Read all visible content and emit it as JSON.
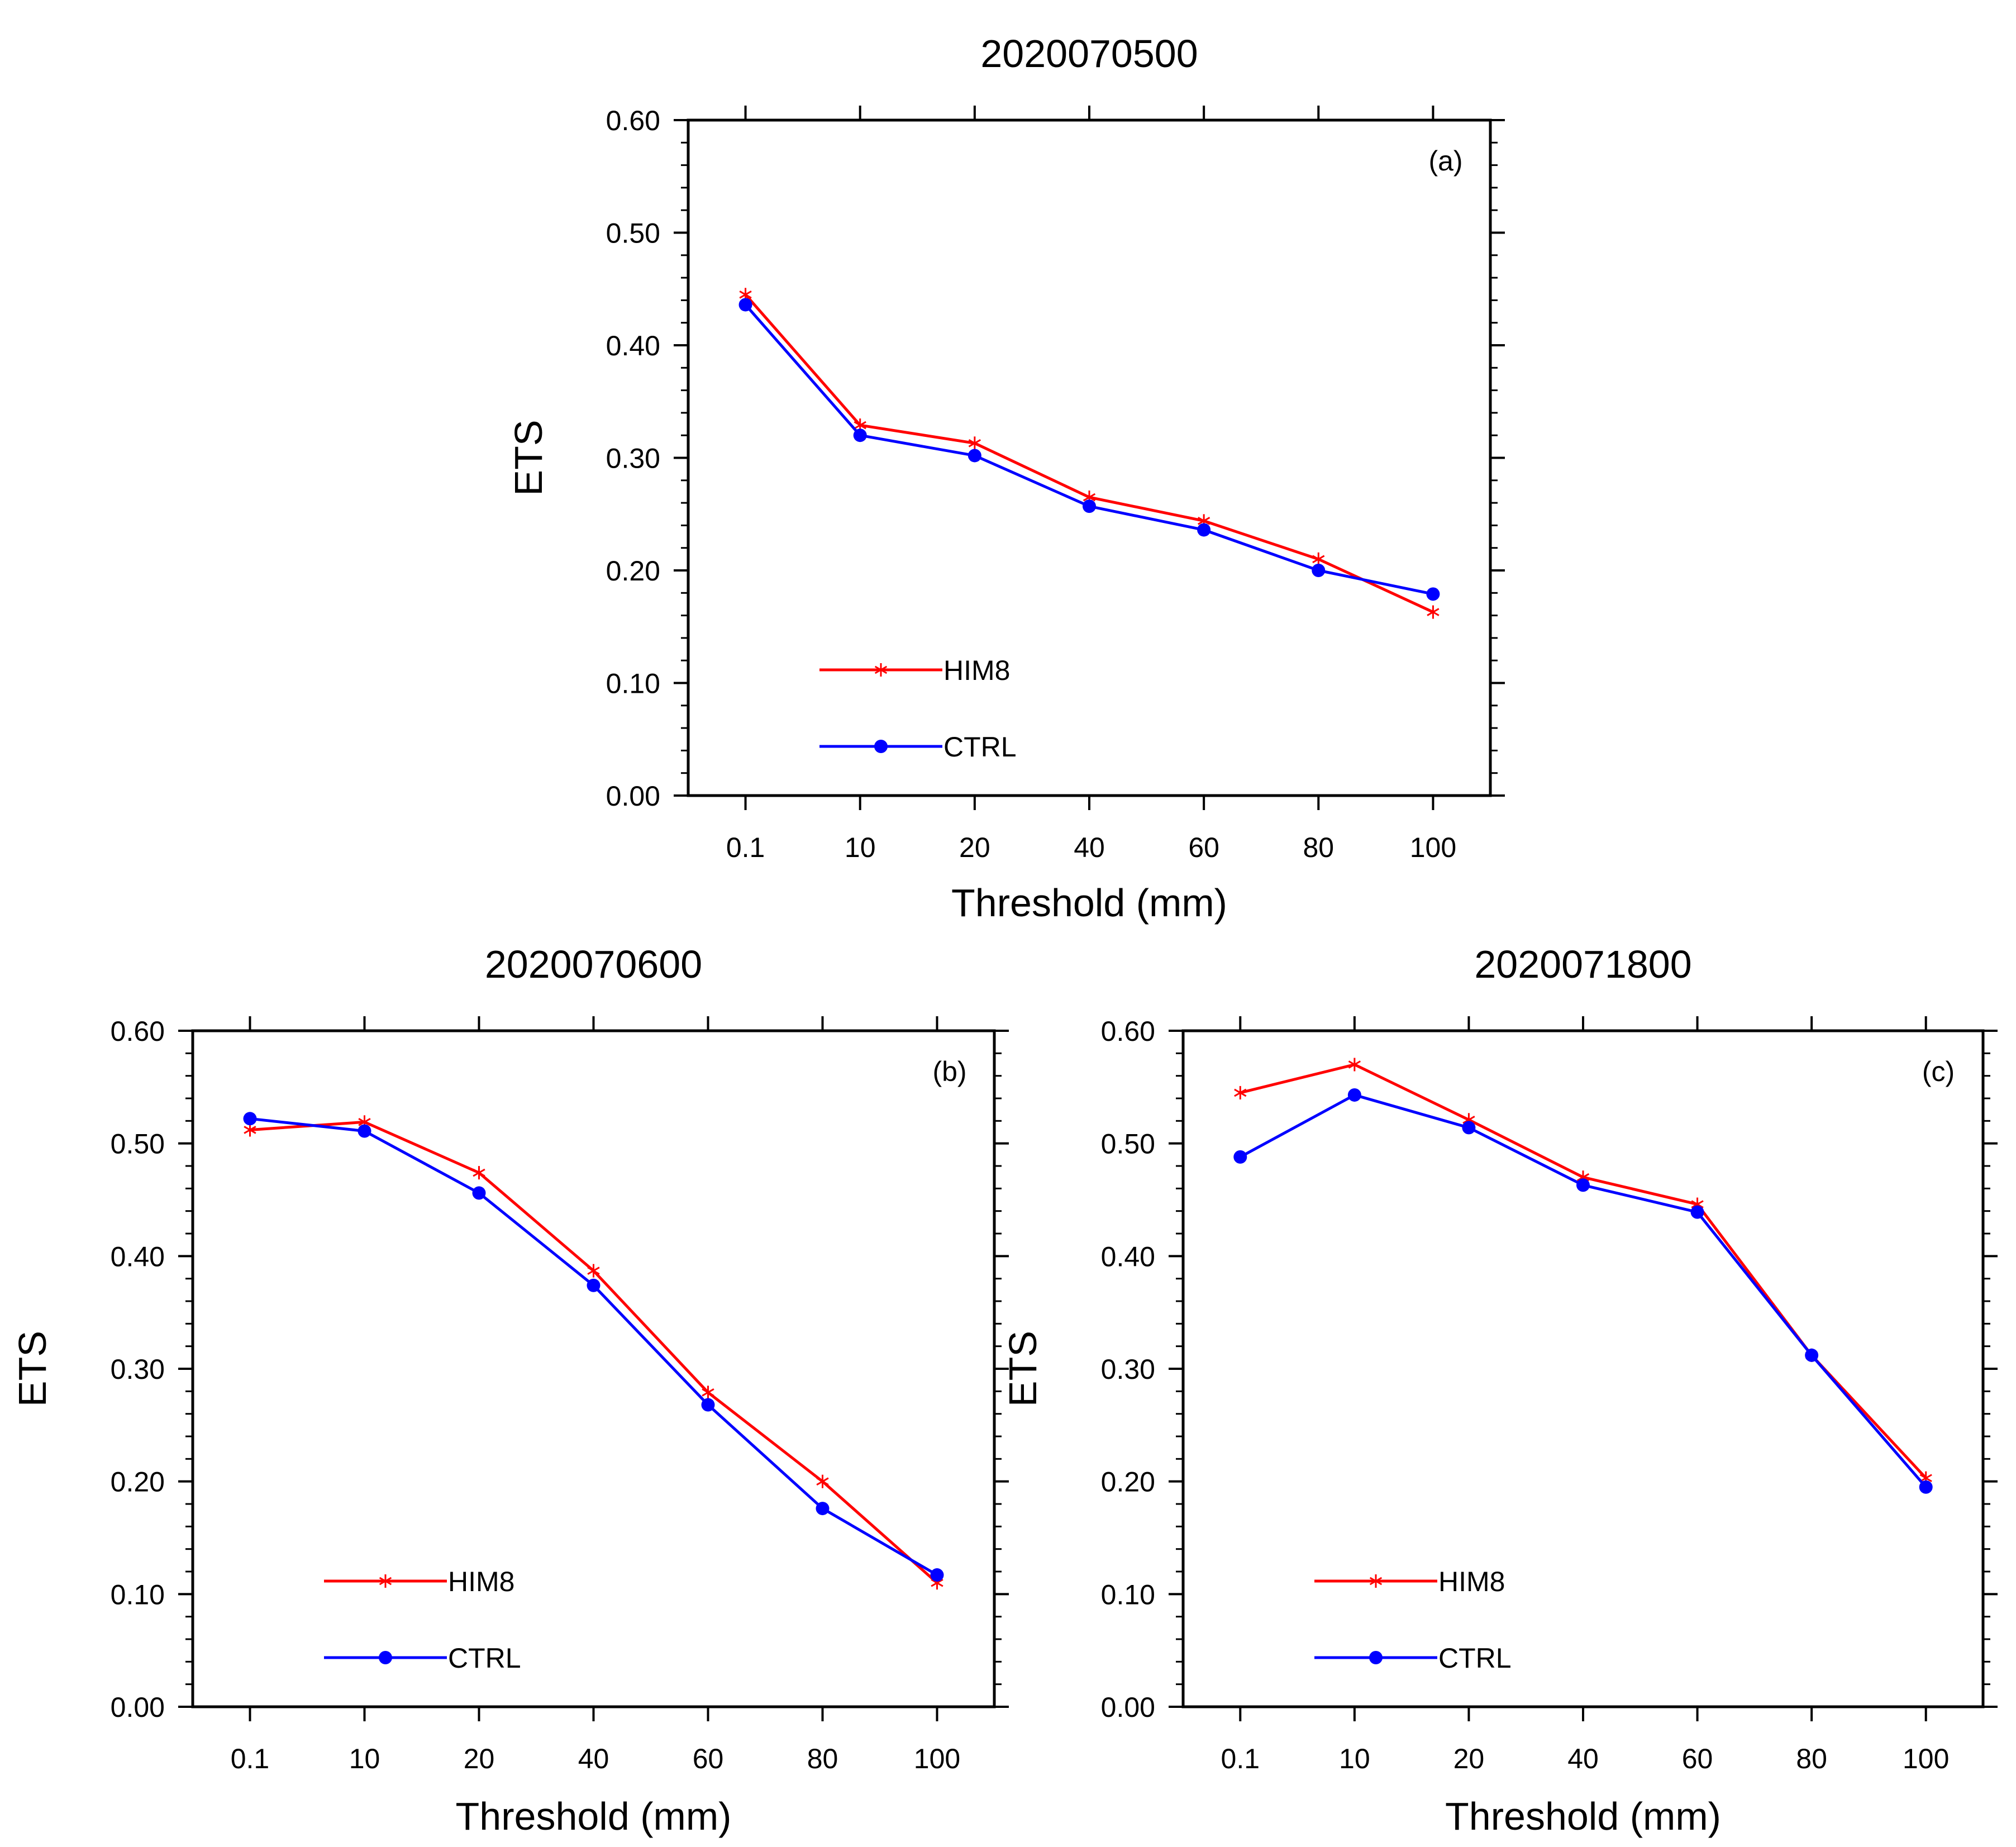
{
  "chart_data": [
    {
      "type": "line",
      "panel_label": "(a)",
      "title": "2020070500",
      "xlabel": "Threshold (mm)",
      "ylabel": "ETS",
      "categories": [
        "0.1",
        "10",
        "20",
        "40",
        "60",
        "80",
        "100"
      ],
      "ylim": [
        0,
        0.6
      ],
      "yticks": [
        "0.00",
        "0.10",
        "0.20",
        "0.30",
        "0.40",
        "0.50",
        "0.60"
      ],
      "legend_position": "bottom-left",
      "series": [
        {
          "name": "HIM8",
          "color": "#ff0000",
          "marker": "asterisk",
          "values": [
            0.445,
            0.329,
            0.313,
            0.265,
            0.244,
            0.21,
            0.163
          ]
        },
        {
          "name": "CTRL",
          "color": "#0000ff",
          "marker": "dot",
          "values": [
            0.436,
            0.32,
            0.302,
            0.257,
            0.236,
            0.2,
            0.179
          ]
        }
      ]
    },
    {
      "type": "line",
      "panel_label": "(b)",
      "title": "2020070600",
      "xlabel": "Threshold (mm)",
      "ylabel": "ETS",
      "categories": [
        "0.1",
        "10",
        "20",
        "40",
        "60",
        "80",
        "100"
      ],
      "ylim": [
        0,
        0.6
      ],
      "yticks": [
        "0.00",
        "0.10",
        "0.20",
        "0.30",
        "0.40",
        "0.50",
        "0.60"
      ],
      "legend_position": "bottom-left",
      "series": [
        {
          "name": "HIM8",
          "color": "#ff0000",
          "marker": "asterisk",
          "values": [
            0.512,
            0.519,
            0.474,
            0.387,
            0.279,
            0.2,
            0.11
          ]
        },
        {
          "name": "CTRL",
          "color": "#0000ff",
          "marker": "dot",
          "values": [
            0.522,
            0.511,
            0.456,
            0.374,
            0.268,
            0.176,
            0.117
          ]
        }
      ]
    },
    {
      "type": "line",
      "panel_label": "(c)",
      "title": "2020071800",
      "xlabel": "Threshold (mm)",
      "ylabel": "ETS",
      "categories": [
        "0.1",
        "10",
        "20",
        "40",
        "60",
        "80",
        "100"
      ],
      "ylim": [
        0,
        0.6
      ],
      "yticks": [
        "0.00",
        "0.10",
        "0.20",
        "0.30",
        "0.40",
        "0.50",
        "0.60"
      ],
      "legend_position": "bottom-left",
      "series": [
        {
          "name": "HIM8",
          "color": "#ff0000",
          "marker": "asterisk",
          "values": [
            0.545,
            0.57,
            0.521,
            0.47,
            0.446,
            0.312,
            0.203
          ]
        },
        {
          "name": "CTRL",
          "color": "#0000ff",
          "marker": "dot",
          "values": [
            0.488,
            0.543,
            0.514,
            0.463,
            0.439,
            0.312,
            0.195
          ]
        }
      ]
    }
  ]
}
